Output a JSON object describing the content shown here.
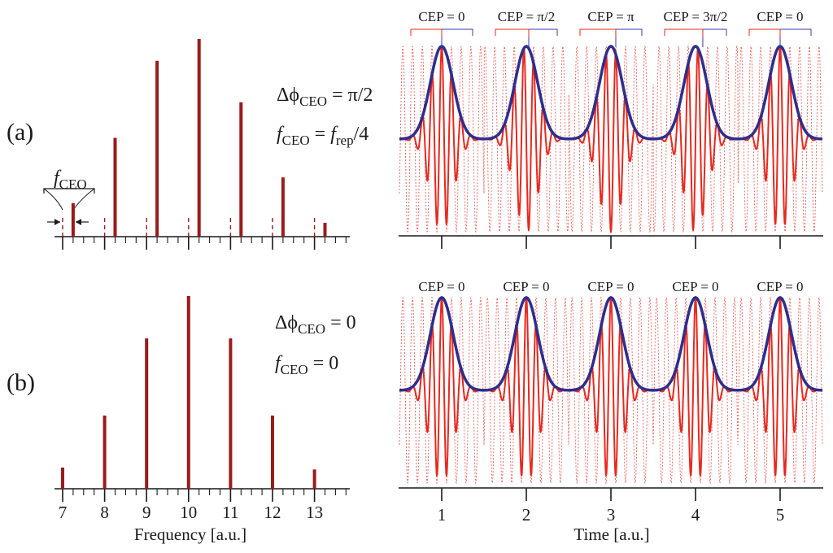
{
  "panels": {
    "a": {
      "label": "(a)",
      "eq1": {
        "prefix": "Δϕ",
        "sub": "CEO",
        "suffix": " = π/2"
      },
      "eq2": {
        "f1": "f",
        "sub1": "CEO",
        "mid": " = ",
        "f2": "f",
        "sub2": "rep",
        "tail": "/4"
      },
      "fceo_label": {
        "f": "f",
        "sub": "CEO"
      }
    },
    "b": {
      "label": "(b)",
      "eq1": {
        "prefix": "Δϕ",
        "sub": "CEO",
        "suffix": " = 0"
      },
      "eq2": {
        "f1": "f",
        "sub1": "CEO",
        "mid": " = 0"
      }
    }
  },
  "colors": {
    "comb": "#9a1b1b",
    "carrier": "#e8281e",
    "envelope": "#2e2e8c",
    "axis": "#1a1a1a",
    "bracket_red": "#e8281e",
    "bracket_blue": "#3a3ab0"
  },
  "chart_data": [
    {
      "type": "bar",
      "panel": "a",
      "x": [
        7.25,
        8.25,
        9.25,
        10.25,
        11.25,
        12.25,
        13.25
      ],
      "values": [
        0.17,
        0.5,
        0.89,
        1.0,
        0.68,
        0.3,
        0.07
      ],
      "reference_lines": [
        7,
        8,
        9,
        10,
        11,
        12,
        13
      ],
      "xlim": [
        7,
        13.85
      ],
      "ylim": [
        0,
        1.05
      ],
      "tick_labels_shown": false
    },
    {
      "type": "bar",
      "panel": "b",
      "x": [
        7,
        8,
        9,
        10,
        11,
        12,
        13
      ],
      "values": [
        0.11,
        0.38,
        0.78,
        1.0,
        0.78,
        0.38,
        0.1
      ],
      "xlim": [
        7,
        13.85
      ],
      "ylim": [
        0,
        1.05
      ],
      "xticks": [
        "7",
        "8",
        "9",
        "10",
        "11",
        "12",
        "13"
      ],
      "xlabel": "Frequency [a.u.]"
    },
    {
      "type": "line",
      "panel": "a",
      "series": [
        {
          "name": "carrier",
          "kind": "pulse_train",
          "centers": [
            1,
            2,
            3,
            4,
            5
          ],
          "cep": [
            0,
            1.5708,
            3.1416,
            4.7124,
            0
          ]
        },
        {
          "name": "envelope",
          "kind": "gaussian_envelope",
          "centers": [
            1,
            2,
            3,
            4,
            5
          ]
        }
      ],
      "cep_labels": [
        "CEP = 0",
        "CEP = π/2",
        "CEP = π",
        "CEP = 3π/2",
        "CEP = 0"
      ],
      "xlim": [
        0.5,
        5.5
      ],
      "xticks": [
        1,
        2,
        3,
        4,
        5
      ],
      "tick_labels_shown": false
    },
    {
      "type": "line",
      "panel": "b",
      "series": [
        {
          "name": "carrier",
          "kind": "pulse_train",
          "centers": [
            1,
            2,
            3,
            4,
            5
          ],
          "cep": [
            0,
            0,
            0,
            0,
            0
          ]
        },
        {
          "name": "envelope",
          "kind": "gaussian_envelope",
          "centers": [
            1,
            2,
            3,
            4,
            5
          ]
        }
      ],
      "cep_labels": [
        "CEP = 0",
        "CEP = 0",
        "CEP = 0",
        "CEP = 0",
        "CEP = 0"
      ],
      "xlim": [
        0.5,
        5.5
      ],
      "xticks": [
        "1",
        "2",
        "3",
        "4",
        "5"
      ],
      "xlabel": "Time [a.u.]"
    }
  ]
}
